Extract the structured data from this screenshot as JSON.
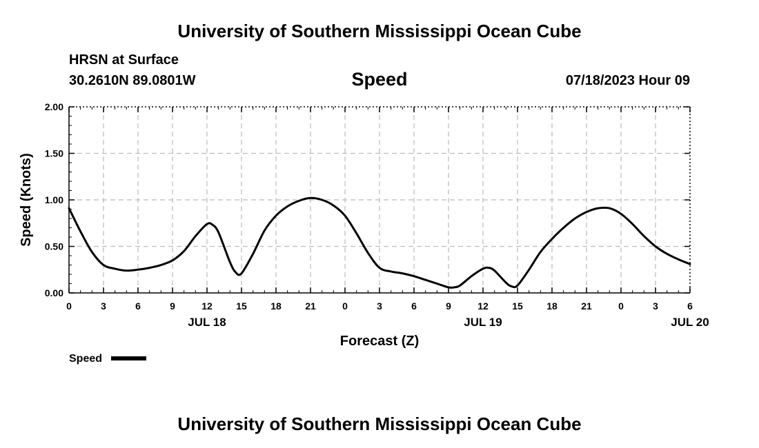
{
  "header": {
    "title": "University of Southern Mississippi Ocean Cube",
    "station": "HRSN at Surface",
    "coords": "30.2610N  89.0801W",
    "variable": "Speed",
    "datetime": "07/18/2023 Hour 09"
  },
  "footer": {
    "title": "University of Southern Mississippi Ocean Cube"
  },
  "chart_data": {
    "type": "line",
    "title": "Speed",
    "xlabel": "Forecast (Z)",
    "ylabel": "Speed (Knots)",
    "ylim": [
      0,
      2
    ],
    "xlim": [
      "2023-07-18T00:00Z",
      "2023-07-20T06:00Z"
    ],
    "grid": true,
    "legend": {
      "label": "Speed",
      "position": "bottom-left"
    },
    "yticks": [
      "0.00",
      "0.50",
      "1.00",
      "1.50",
      "2.00"
    ],
    "xticks": [
      "0",
      "3",
      "6",
      "9",
      "12",
      "15",
      "18",
      "21",
      "0",
      "3",
      "6",
      "9",
      "12",
      "15",
      "18",
      "21",
      "0",
      "3",
      "6"
    ],
    "date_labels": [
      {
        "text": "JUL 18",
        "at": "2023-07-18T12:00Z"
      },
      {
        "text": "JUL 19",
        "at": "2023-07-19T12:00Z"
      },
      {
        "text": "JUL 20",
        "at": "2023-07-20T06:00Z"
      }
    ],
    "series": [
      {
        "name": "Speed",
        "color": "#000000",
        "x": [
          "2023-07-18T00:00Z",
          "2023-07-18T01:00Z",
          "2023-07-18T02:00Z",
          "2023-07-18T03:00Z",
          "2023-07-18T04:00Z",
          "2023-07-18T05:00Z",
          "2023-07-18T06:00Z",
          "2023-07-18T07:00Z",
          "2023-07-18T08:00Z",
          "2023-07-18T09:00Z",
          "2023-07-18T10:00Z",
          "2023-07-18T11:00Z",
          "2023-07-18T12:00Z",
          "2023-07-18T12:30Z",
          "2023-07-18T13:00Z",
          "2023-07-18T14:00Z",
          "2023-07-18T14:30Z",
          "2023-07-18T15:00Z",
          "2023-07-18T16:00Z",
          "2023-07-18T17:00Z",
          "2023-07-18T18:00Z",
          "2023-07-18T19:00Z",
          "2023-07-18T20:00Z",
          "2023-07-18T21:00Z",
          "2023-07-18T22:00Z",
          "2023-07-18T23:00Z",
          "2023-07-19T00:00Z",
          "2023-07-19T01:00Z",
          "2023-07-19T02:00Z",
          "2023-07-19T03:00Z",
          "2023-07-19T04:00Z",
          "2023-07-19T05:00Z",
          "2023-07-19T06:00Z",
          "2023-07-19T07:00Z",
          "2023-07-19T08:00Z",
          "2023-07-19T09:00Z",
          "2023-07-19T09:30Z",
          "2023-07-19T10:00Z",
          "2023-07-19T11:00Z",
          "2023-07-19T12:00Z",
          "2023-07-19T12:30Z",
          "2023-07-19T13:00Z",
          "2023-07-19T14:00Z",
          "2023-07-19T14:30Z",
          "2023-07-19T15:00Z",
          "2023-07-19T16:00Z",
          "2023-07-19T17:00Z",
          "2023-07-19T18:00Z",
          "2023-07-19T19:00Z",
          "2023-07-19T20:00Z",
          "2023-07-19T21:00Z",
          "2023-07-19T22:00Z",
          "2023-07-19T23:00Z",
          "2023-07-20T00:00Z",
          "2023-07-20T01:00Z",
          "2023-07-20T02:00Z",
          "2023-07-20T03:00Z",
          "2023-07-20T04:00Z",
          "2023-07-20T05:00Z",
          "2023-07-20T06:00Z"
        ],
        "y": [
          0.91,
          0.66,
          0.44,
          0.3,
          0.26,
          0.24,
          0.25,
          0.27,
          0.3,
          0.35,
          0.45,
          0.61,
          0.74,
          0.73,
          0.65,
          0.33,
          0.22,
          0.21,
          0.42,
          0.67,
          0.83,
          0.93,
          0.99,
          1.02,
          1.0,
          0.94,
          0.83,
          0.64,
          0.43,
          0.27,
          0.23,
          0.21,
          0.18,
          0.14,
          0.1,
          0.06,
          0.06,
          0.08,
          0.18,
          0.26,
          0.27,
          0.24,
          0.11,
          0.07,
          0.08,
          0.25,
          0.44,
          0.58,
          0.7,
          0.8,
          0.87,
          0.91,
          0.91,
          0.85,
          0.74,
          0.61,
          0.5,
          0.42,
          0.36,
          0.31
        ]
      }
    ]
  }
}
